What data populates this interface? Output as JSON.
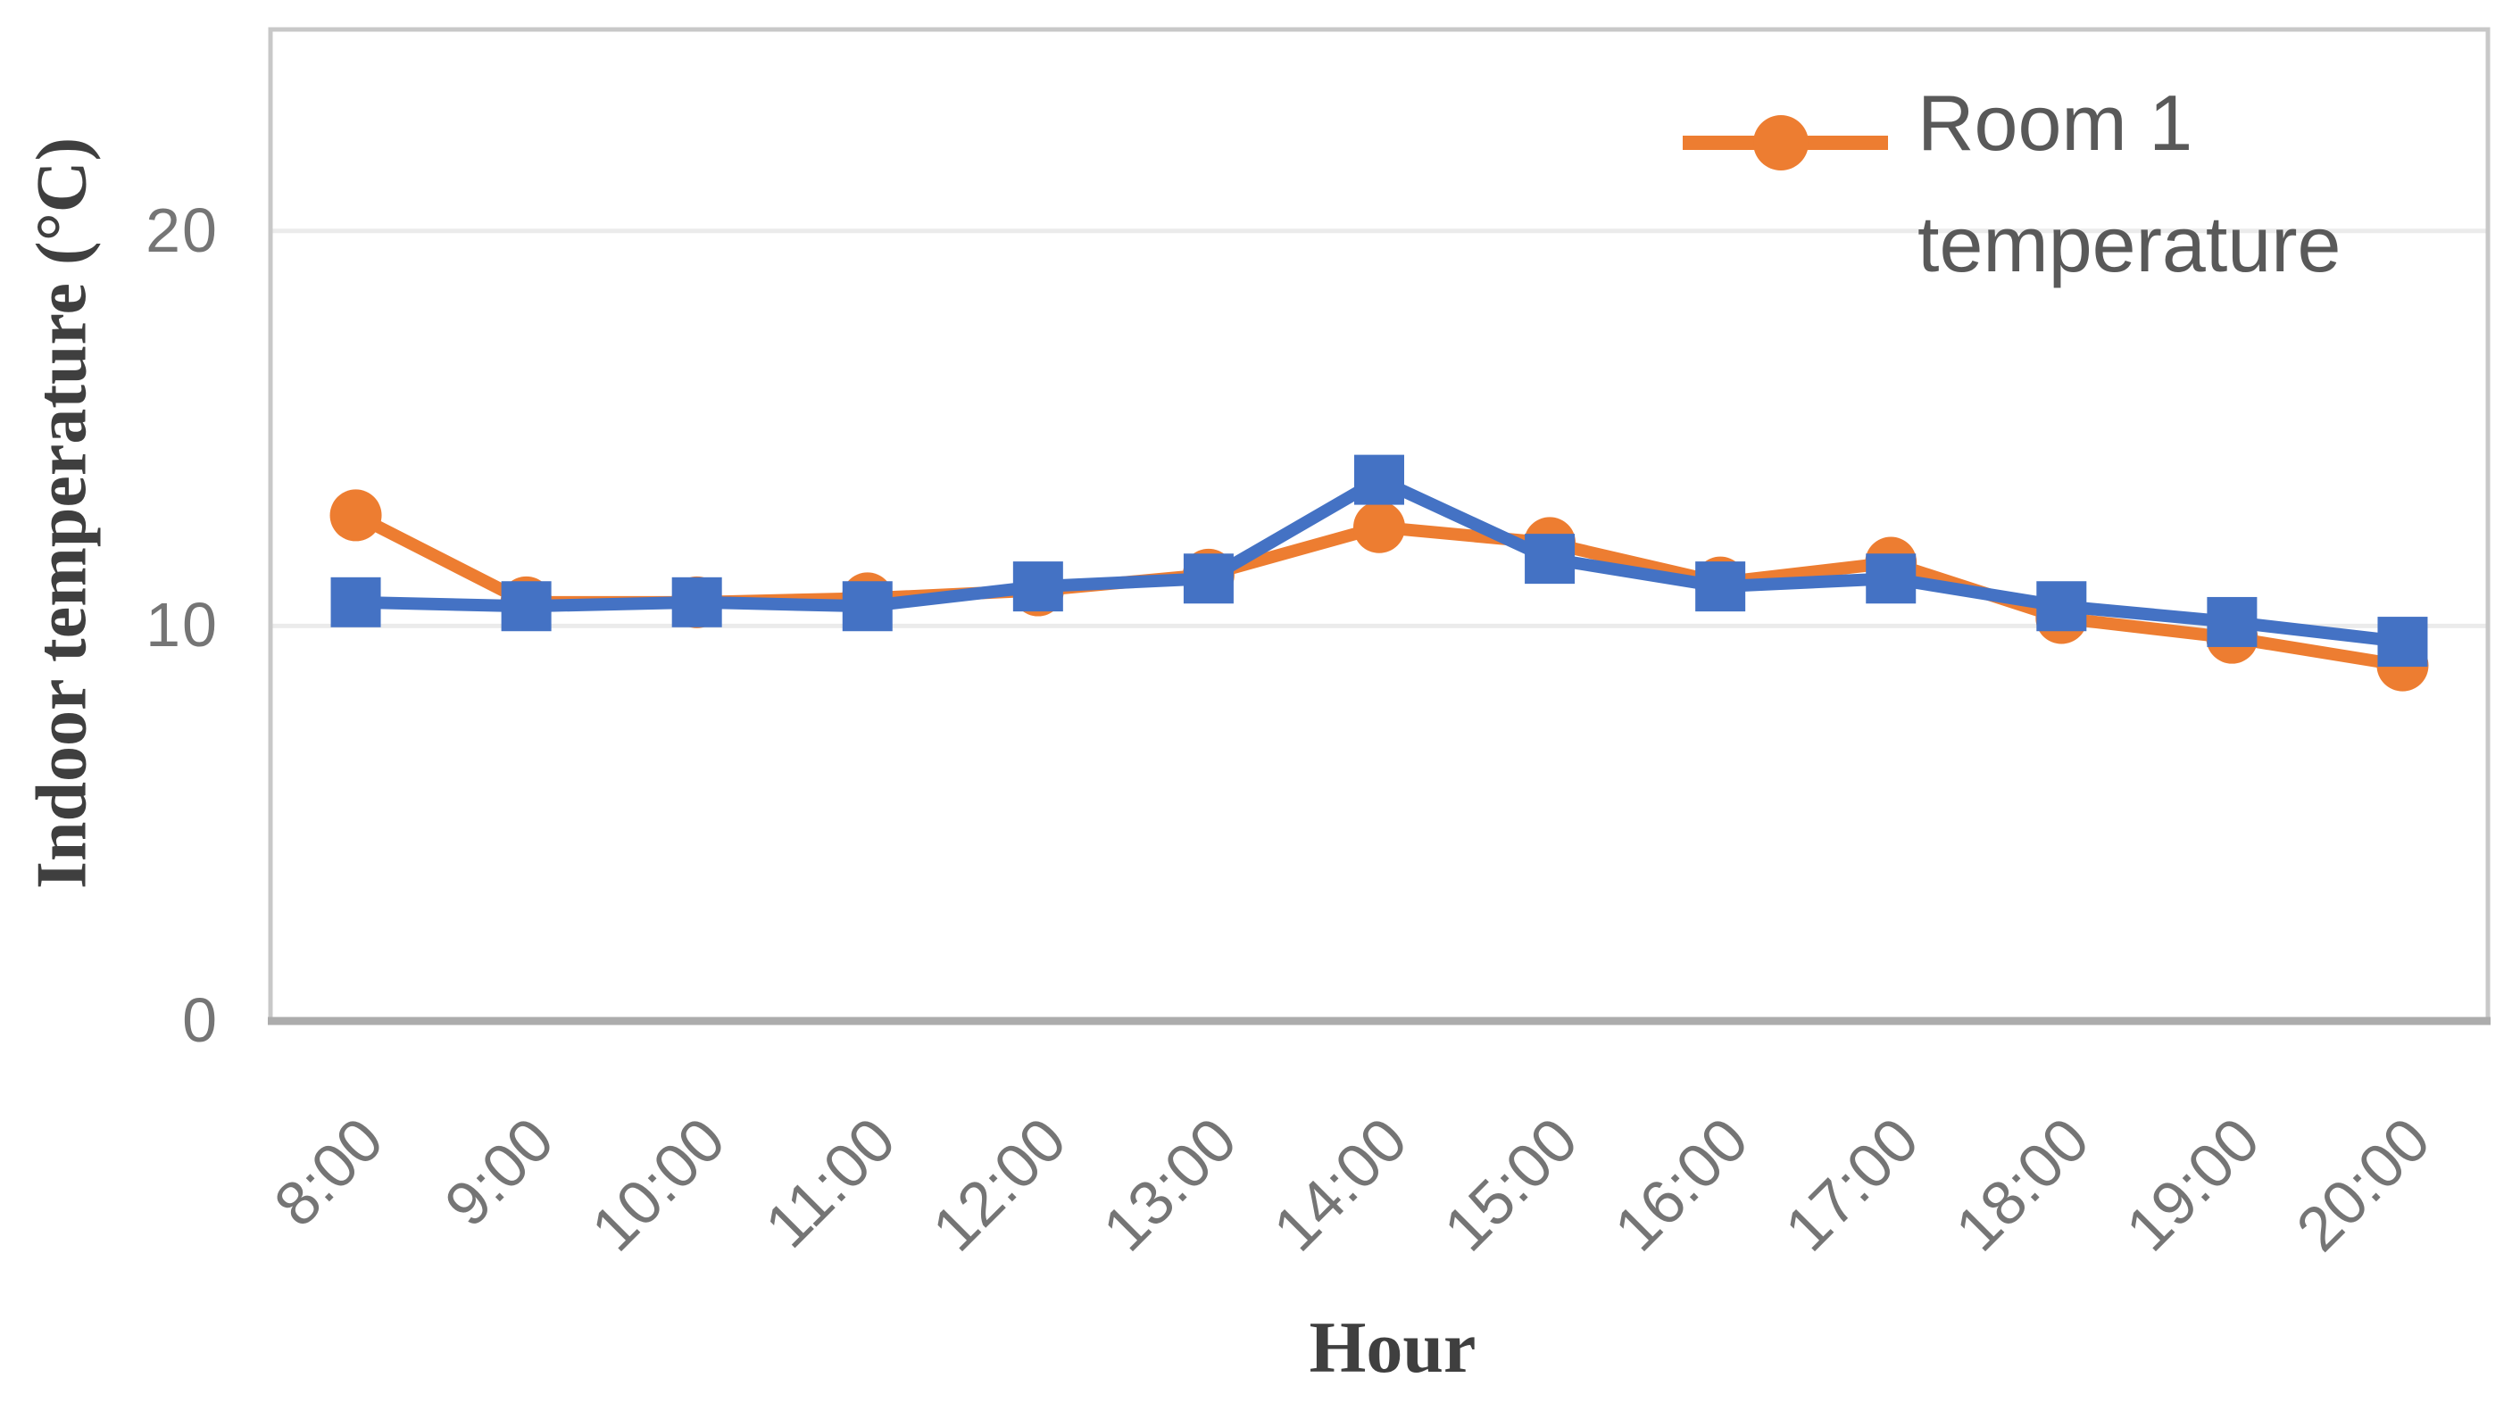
{
  "chart_data": {
    "type": "line",
    "title": "",
    "categories": [
      "8:00",
      "9:00",
      "10:00",
      "11:00",
      "12:00",
      "13:00",
      "14:00",
      "15:00",
      "16:00",
      "17:00",
      "18:00",
      "19:00",
      "20:00"
    ],
    "series": [
      {
        "name": "Room 1 temperature",
        "marker": "circle",
        "color": "#ED7D31",
        "values": [
          12.8,
          10.6,
          10.6,
          10.7,
          10.9,
          11.3,
          12.5,
          12.1,
          11.1,
          11.6,
          10.2,
          9.7,
          9.0
        ]
      },
      {
        "name": "",
        "marker": "square",
        "color": "#4472C4",
        "values": [
          10.6,
          10.5,
          10.6,
          10.5,
          11.0,
          11.2,
          13.7,
          11.7,
          11.0,
          11.2,
          10.5,
          10.1,
          9.6
        ]
      }
    ],
    "xlabel": "Hour",
    "ylabel": "Indoor temperature (°C)",
    "y_ticks": [
      0,
      10,
      20
    ],
    "ylim": [
      0,
      25.1
    ],
    "grid": "horizontal-major",
    "legend_position": "inside-top-right"
  },
  "axes": {
    "x_title": "Hour",
    "y_title": "Indoor temperature (°C)"
  },
  "legend": {
    "line1": "Room 1",
    "line2": "temperature"
  },
  "colors": {
    "series_room1": "#ED7D31",
    "series_unlabeled": "#4472C4",
    "gridline": "#EBEBEB",
    "plot_border": "#C8C8C8",
    "axis_line": "#ACACAC",
    "tick_text": "#757575",
    "title_text": "#3F3F3F",
    "legend_text": "#595959"
  }
}
